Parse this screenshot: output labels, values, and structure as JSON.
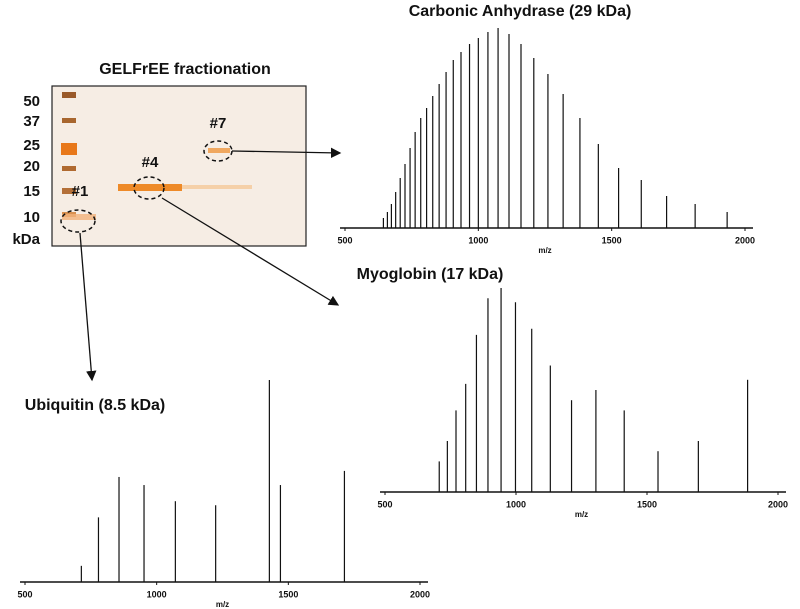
{
  "gel": {
    "title": "GELFrEE fractionation",
    "ladder": [
      50,
      37,
      25,
      20,
      15,
      10
    ],
    "ladder_unit": "kDa",
    "fractions": [
      "#1",
      "#4",
      "#7"
    ]
  },
  "chart_data": [
    {
      "type": "spectrum",
      "title": "Carbonic Anhydrase (29 kDa)",
      "x_label": "m/z",
      "x": [
        1933,
        1813,
        1706,
        1611,
        1526,
        1450,
        1381,
        1318,
        1261,
        1208,
        1160,
        1115,
        1074,
        1036,
        1000,
        967,
        935,
        906,
        879,
        853,
        829,
        806,
        784,
        763,
        744,
        725,
        707,
        690,
        674,
        659,
        644
      ],
      "values": [
        8,
        12,
        16,
        24,
        30,
        42,
        55,
        67,
        77,
        85,
        92,
        97,
        100,
        98,
        95,
        92,
        88,
        84,
        78,
        72,
        66,
        60,
        55,
        48,
        40,
        32,
        25,
        18,
        12,
        8,
        5
      ],
      "xlim": [
        500,
        2000
      ],
      "xticks": [
        500,
        1000,
        1500,
        2000
      ],
      "color": "#111111"
    },
    {
      "type": "spectrum",
      "title": "Myoglobin (17 kDa)",
      "x_label": "m/z",
      "x": [
        1884,
        1696,
        1542,
        1413,
        1305,
        1212,
        1131,
        1060,
        998,
        943,
        893,
        849,
        808,
        771,
        738,
        707
      ],
      "values": [
        55,
        25,
        20,
        40,
        50,
        45,
        62,
        80,
        93,
        100,
        95,
        77,
        53,
        40,
        25,
        15
      ],
      "xlim": [
        500,
        2000
      ],
      "xticks": [
        500,
        1000,
        1500,
        2000
      ],
      "color": "#111111"
    },
    {
      "type": "spectrum",
      "title": "Ubiquitin (8.5 kDa)",
      "x_label": "m/z",
      "x": [
        1713,
        1470,
        1428,
        1224,
        1071,
        952,
        857,
        779,
        714
      ],
      "values": [
        55,
        48,
        100,
        38,
        40,
        48,
        52,
        32,
        8
      ],
      "xlim": [
        500,
        2000
      ],
      "xticks": [
        500,
        1000,
        1500,
        2000
      ],
      "color": "#111111"
    }
  ]
}
